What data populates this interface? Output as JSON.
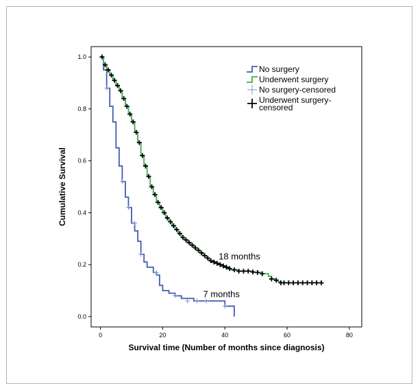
{
  "chart_data": {
    "type": "line",
    "chart_subtype": "kaplan-meier",
    "xlabel": "Survival time (Number of months since diagnosis)",
    "ylabel": "Cumulative Survival",
    "xlim": [
      -3,
      84
    ],
    "ylim": [
      -0.04,
      1.04
    ],
    "x_ticks": [
      0,
      20,
      40,
      60,
      80
    ],
    "y_ticks": [
      0.0,
      0.2,
      0.4,
      0.6,
      0.8,
      1.0
    ],
    "grid": false,
    "legend_position": "top-right",
    "legend": [
      {
        "label": "No surgery",
        "style": "step",
        "color": "#3d5daf"
      },
      {
        "label": "Underwent surgery",
        "style": "step",
        "color": "#3fae49"
      },
      {
        "label": "No surgery-censored",
        "style": "cross",
        "color": "#7e94c9"
      },
      {
        "label": "Underwent surgery-\ncensored",
        "style": "cross",
        "color": "#000000"
      }
    ],
    "series": [
      {
        "name": "No surgery",
        "color": "#3d5daf",
        "x": [
          0,
          1,
          2,
          3,
          4,
          5,
          6,
          7,
          8,
          9,
          10,
          11,
          12,
          13,
          14,
          15,
          17,
          18,
          19,
          20,
          22,
          24,
          26,
          30,
          35,
          40,
          43
        ],
        "y": [
          1.0,
          0.95,
          0.88,
          0.81,
          0.75,
          0.65,
          0.58,
          0.52,
          0.46,
          0.42,
          0.36,
          0.33,
          0.29,
          0.24,
          0.21,
          0.19,
          0.17,
          0.16,
          0.12,
          0.1,
          0.09,
          0.08,
          0.07,
          0.06,
          0.06,
          0.04,
          0.0
        ],
        "censored": [
          {
            "x": 2,
            "y": 0.88
          },
          {
            "x": 7,
            "y": 0.52
          },
          {
            "x": 9,
            "y": 0.42
          },
          {
            "x": 11,
            "y": 0.36
          },
          {
            "x": 13,
            "y": 0.24
          },
          {
            "x": 18,
            "y": 0.17
          },
          {
            "x": 24,
            "y": 0.08
          },
          {
            "x": 28,
            "y": 0.06
          },
          {
            "x": 31,
            "y": 0.06
          },
          {
            "x": 34,
            "y": 0.06
          },
          {
            "x": 40,
            "y": 0.04
          }
        ]
      },
      {
        "name": "Underwent surgery",
        "color": "#3fae49",
        "x": [
          0,
          1,
          2,
          3,
          4,
          5,
          6,
          7,
          8,
          9,
          10,
          11,
          12,
          13,
          14,
          15,
          16,
          17,
          18,
          19,
          20,
          21,
          22,
          23,
          24,
          25,
          26,
          27,
          28,
          29,
          30,
          31,
          32,
          33,
          34,
          35,
          36,
          37,
          38,
          39,
          40,
          41,
          42,
          43,
          44,
          45,
          46,
          47,
          48,
          49,
          50,
          52,
          54,
          55,
          56,
          57,
          58,
          60,
          71
        ],
        "y": [
          1.0,
          0.97,
          0.95,
          0.93,
          0.91,
          0.89,
          0.87,
          0.84,
          0.81,
          0.78,
          0.75,
          0.71,
          0.67,
          0.62,
          0.58,
          0.54,
          0.5,
          0.47,
          0.44,
          0.42,
          0.4,
          0.38,
          0.365,
          0.35,
          0.335,
          0.32,
          0.305,
          0.295,
          0.285,
          0.275,
          0.265,
          0.255,
          0.245,
          0.235,
          0.225,
          0.215,
          0.21,
          0.205,
          0.2,
          0.195,
          0.19,
          0.185,
          0.18,
          0.18,
          0.175,
          0.175,
          0.175,
          0.175,
          0.175,
          0.17,
          0.17,
          0.165,
          0.155,
          0.145,
          0.14,
          0.135,
          0.13,
          0.13,
          0.13
        ],
        "censored": [
          {
            "x": 0.5,
            "y": 1.0
          },
          {
            "x": 1.5,
            "y": 0.97
          },
          {
            "x": 2.5,
            "y": 0.95
          },
          {
            "x": 3.5,
            "y": 0.93
          },
          {
            "x": 4.5,
            "y": 0.91
          },
          {
            "x": 5.5,
            "y": 0.89
          },
          {
            "x": 6.5,
            "y": 0.87
          },
          {
            "x": 7.5,
            "y": 0.84
          },
          {
            "x": 8.5,
            "y": 0.81
          },
          {
            "x": 9.5,
            "y": 0.78
          },
          {
            "x": 10.5,
            "y": 0.75
          },
          {
            "x": 11.5,
            "y": 0.71
          },
          {
            "x": 12.5,
            "y": 0.67
          },
          {
            "x": 13.5,
            "y": 0.62
          },
          {
            "x": 14.5,
            "y": 0.58
          },
          {
            "x": 15.5,
            "y": 0.54
          },
          {
            "x": 16.5,
            "y": 0.5
          },
          {
            "x": 17.5,
            "y": 0.47
          },
          {
            "x": 18.5,
            "y": 0.44
          },
          {
            "x": 19.5,
            "y": 0.42
          },
          {
            "x": 20.5,
            "y": 0.4
          },
          {
            "x": 21.5,
            "y": 0.38
          },
          {
            "x": 22.5,
            "y": 0.365
          },
          {
            "x": 23.5,
            "y": 0.35
          },
          {
            "x": 24.5,
            "y": 0.335
          },
          {
            "x": 25.5,
            "y": 0.32
          },
          {
            "x": 26.5,
            "y": 0.305
          },
          {
            "x": 27.5,
            "y": 0.295
          },
          {
            "x": 28.5,
            "y": 0.285
          },
          {
            "x": 29.5,
            "y": 0.275
          },
          {
            "x": 30.5,
            "y": 0.265
          },
          {
            "x": 31.5,
            "y": 0.255
          },
          {
            "x": 32.5,
            "y": 0.245
          },
          {
            "x": 33.5,
            "y": 0.235
          },
          {
            "x": 34.5,
            "y": 0.225
          },
          {
            "x": 35.5,
            "y": 0.215
          },
          {
            "x": 36.5,
            "y": 0.21
          },
          {
            "x": 37.5,
            "y": 0.205
          },
          {
            "x": 38.5,
            "y": 0.2
          },
          {
            "x": 39.5,
            "y": 0.195
          },
          {
            "x": 40.5,
            "y": 0.19
          },
          {
            "x": 41.5,
            "y": 0.185
          },
          {
            "x": 43,
            "y": 0.18
          },
          {
            "x": 44.5,
            "y": 0.175
          },
          {
            "x": 46,
            "y": 0.175
          },
          {
            "x": 47.5,
            "y": 0.175
          },
          {
            "x": 49,
            "y": 0.172
          },
          {
            "x": 50.5,
            "y": 0.17
          },
          {
            "x": 52,
            "y": 0.165
          },
          {
            "x": 55,
            "y": 0.145
          },
          {
            "x": 56.5,
            "y": 0.14
          },
          {
            "x": 58,
            "y": 0.13
          },
          {
            "x": 59,
            "y": 0.13
          },
          {
            "x": 60.5,
            "y": 0.13
          },
          {
            "x": 62,
            "y": 0.13
          },
          {
            "x": 63.5,
            "y": 0.13
          },
          {
            "x": 65,
            "y": 0.13
          },
          {
            "x": 66.5,
            "y": 0.13
          },
          {
            "x": 68,
            "y": 0.13
          },
          {
            "x": 69.5,
            "y": 0.13
          },
          {
            "x": 71,
            "y": 0.13
          }
        ]
      }
    ],
    "annotations": [
      {
        "text": "18 months",
        "x": 38,
        "y": 0.22
      },
      {
        "text": "7 months",
        "x": 33,
        "y": 0.075
      }
    ]
  }
}
